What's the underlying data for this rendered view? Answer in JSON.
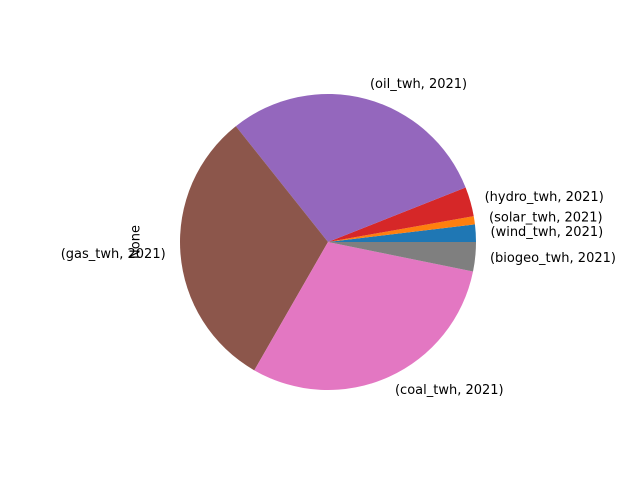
{
  "chart_data": {
    "type": "pie",
    "ylabel": "None",
    "start_angle": 0,
    "direction": "counterclockwise",
    "slices": [
      {
        "label": "(wind_twh, 2021)",
        "value": 1.9,
        "color": "#1f77b4"
      },
      {
        "label": "(solar_twh, 2021)",
        "value": 0.9,
        "color": "#ff7f0e"
      },
      {
        "label": "(hydro_twh, 2021)",
        "value": 3.2,
        "color": "#d62728"
      },
      {
        "label": "(oil_twh, 2021)",
        "value": 29.7,
        "color": "#9467bd"
      },
      {
        "label": "(gas_twh, 2021)",
        "value": 31.0,
        "color": "#8c564b"
      },
      {
        "label": "(coal_twh, 2021)",
        "value": 30.1,
        "color": "#e377c2"
      },
      {
        "label": "(biogeo_twh, 2021)",
        "value": 3.2,
        "color": "#7f7f7f"
      }
    ]
  }
}
